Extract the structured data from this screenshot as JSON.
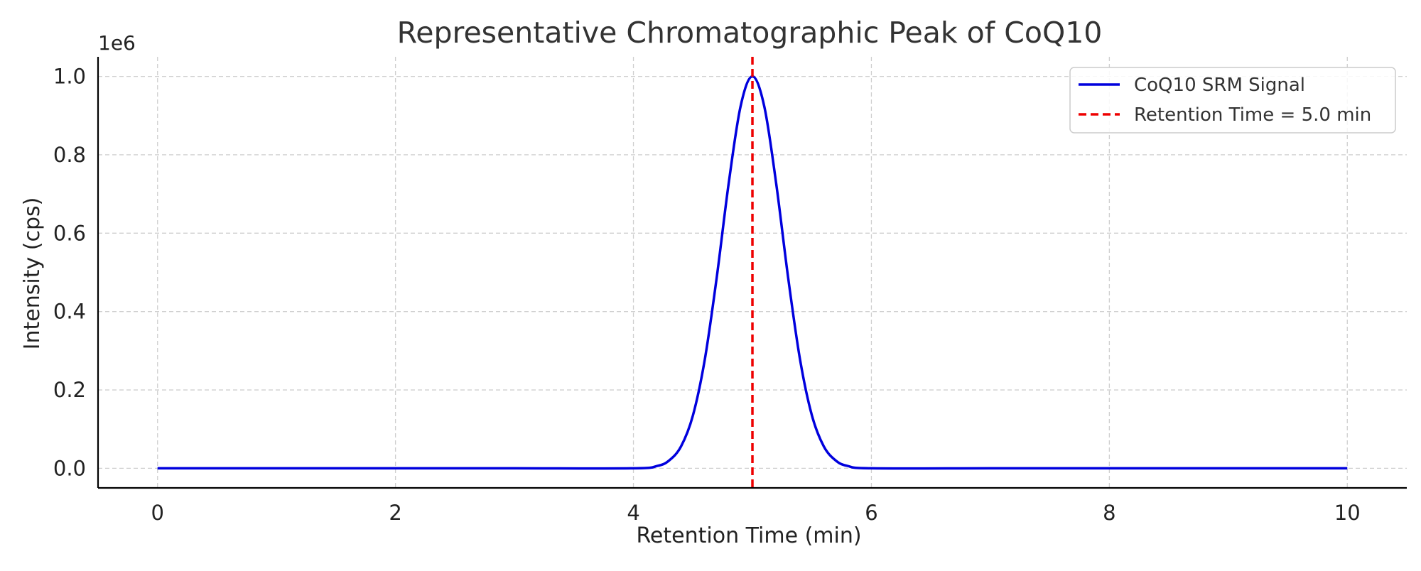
{
  "chart_data": {
    "type": "line",
    "title": "Representative Chromatographic Peak of CoQ10",
    "xlabel": "Retention Time (min)",
    "ylabel": "Intensity (cps)",
    "y_offset_label": "1e6",
    "xlim": [
      -0.5,
      10.5
    ],
    "ylim": [
      -0.05,
      1.05
    ],
    "x_ticks": [
      0,
      2,
      4,
      6,
      8,
      10
    ],
    "x_tick_labels": [
      "0",
      "2",
      "4",
      "6",
      "8",
      "10"
    ],
    "y_ticks": [
      0.0,
      0.2,
      0.4,
      0.6,
      0.8,
      1.0
    ],
    "y_tick_labels": [
      "0.0",
      "0.2",
      "0.4",
      "0.6",
      "0.8",
      "1.0"
    ],
    "grid": true,
    "legend_position": "top-right",
    "series": [
      {
        "name": "CoQ10 SRM Signal",
        "color": "#0000dd",
        "style": "solid",
        "x": [
          0.0,
          1.0,
          2.0,
          3.0,
          4.0,
          4.2,
          4.3,
          4.4,
          4.5,
          4.6,
          4.7,
          4.8,
          4.9,
          5.0,
          5.1,
          5.2,
          5.3,
          5.4,
          5.5,
          5.6,
          5.7,
          5.8,
          6.0,
          7.0,
          8.0,
          9.0,
          10.0
        ],
        "y": [
          0.0,
          0.0,
          0.0,
          0.0,
          0.0,
          0.006,
          0.02,
          0.056,
          0.135,
          0.278,
          0.487,
          0.726,
          0.923,
          1.0,
          0.923,
          0.726,
          0.487,
          0.278,
          0.135,
          0.056,
          0.02,
          0.006,
          0.0,
          0.0,
          0.0,
          0.0,
          0.0
        ]
      },
      {
        "name": "Retention Time = 5.0 min",
        "color": "#ee0000",
        "style": "dashed",
        "type": "vline",
        "x": 5.0
      }
    ]
  }
}
